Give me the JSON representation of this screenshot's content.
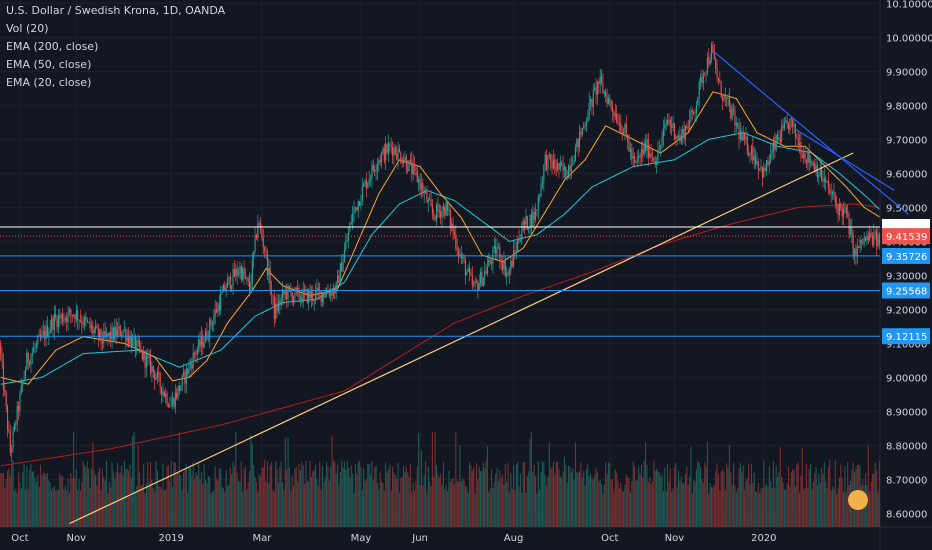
{
  "legend": {
    "title": "U.S. Dollar / Swedish Krona, 1D, OANDA",
    "lines": [
      "Vol (20)",
      "EMA (200, close)",
      "EMA (50, close)",
      "EMA (20, close)"
    ]
  },
  "colors": {
    "background": "#131722",
    "grid": "#1e2230",
    "up": "#26a69a",
    "down": "#ef5350",
    "vol_up": "#1e5b57",
    "vol_down": "#7a2f31",
    "ema200": "#b71c1c",
    "ema50": "#26c6da",
    "ema20": "#ffa726",
    "trendline_up": "#ffcc80",
    "trendline_down": "#2962ff",
    "level_line": "#2196f3"
  },
  "chart_data": {
    "type": "candlestick",
    "ylim": [
      8.56,
      10.11
    ],
    "y_ticks": [
      "10.10000",
      "10.00000",
      "9.90000",
      "9.80000",
      "9.70000",
      "9.60000",
      "9.50000",
      "9.40000",
      "9.30000",
      "9.20000",
      "9.10000",
      "9.00000",
      "8.90000",
      "8.80000",
      "8.70000",
      "8.60000"
    ],
    "x_ticks": [
      "Oct",
      "Nov",
      "2019",
      "Mar",
      "May",
      "Jun",
      "Aug",
      "Oct",
      "Nov",
      "2020"
    ],
    "price_anchors": [
      [
        0,
        9.1
      ],
      [
        8,
        8.78
      ],
      [
        20,
        9.05
      ],
      [
        40,
        9.17
      ],
      [
        55,
        9.19
      ],
      [
        75,
        9.11
      ],
      [
        90,
        9.14
      ],
      [
        105,
        9.06
      ],
      [
        112,
        9.02
      ],
      [
        118,
        8.97
      ],
      [
        125,
        8.92
      ],
      [
        131,
        8.97
      ],
      [
        137,
        9.02
      ],
      [
        142,
        9.07
      ],
      [
        150,
        9.12
      ],
      [
        165,
        9.27
      ],
      [
        175,
        9.32
      ],
      [
        182,
        9.26
      ],
      [
        188,
        9.46
      ],
      [
        193,
        9.38
      ],
      [
        200,
        9.19
      ],
      [
        208,
        9.25
      ],
      [
        218,
        9.24
      ],
      [
        228,
        9.24
      ],
      [
        245,
        9.26
      ],
      [
        257,
        9.48
      ],
      [
        265,
        9.56
      ],
      [
        275,
        9.64
      ],
      [
        285,
        9.68
      ],
      [
        295,
        9.64
      ],
      [
        305,
        9.58
      ],
      [
        315,
        9.48
      ],
      [
        325,
        9.5
      ],
      [
        335,
        9.36
      ],
      [
        345,
        9.26
      ],
      [
        352,
        9.3
      ],
      [
        362,
        9.38
      ],
      [
        370,
        9.3
      ],
      [
        380,
        9.44
      ],
      [
        390,
        9.48
      ],
      [
        397,
        9.64
      ],
      [
        405,
        9.62
      ],
      [
        412,
        9.6
      ],
      [
        420,
        9.68
      ],
      [
        428,
        9.78
      ],
      [
        436,
        9.87
      ],
      [
        445,
        9.8
      ],
      [
        455,
        9.72
      ],
      [
        462,
        9.62
      ],
      [
        470,
        9.68
      ],
      [
        478,
        9.64
      ],
      [
        486,
        9.76
      ],
      [
        495,
        9.7
      ],
      [
        505,
        9.78
      ],
      [
        512,
        9.9
      ],
      [
        518,
        9.96
      ],
      [
        524,
        9.85
      ],
      [
        532,
        9.78
      ],
      [
        540,
        9.7
      ],
      [
        548,
        9.66
      ],
      [
        556,
        9.6
      ],
      [
        566,
        9.7
      ],
      [
        575,
        9.75
      ],
      [
        585,
        9.66
      ],
      [
        594,
        9.62
      ],
      [
        602,
        9.56
      ],
      [
        610,
        9.5
      ],
      [
        616,
        9.48
      ],
      [
        622,
        9.36
      ],
      [
        628,
        9.4
      ],
      [
        634,
        9.41
      ],
      [
        640,
        9.4
      ]
    ],
    "ema20_anchors": [
      [
        0,
        9.0
      ],
      [
        20,
        8.98
      ],
      [
        40,
        9.08
      ],
      [
        60,
        9.12
      ],
      [
        90,
        9.1
      ],
      [
        112,
        9.06
      ],
      [
        125,
        8.99
      ],
      [
        137,
        9.0
      ],
      [
        150,
        9.05
      ],
      [
        165,
        9.16
      ],
      [
        182,
        9.25
      ],
      [
        193,
        9.32
      ],
      [
        205,
        9.27
      ],
      [
        225,
        9.24
      ],
      [
        245,
        9.26
      ],
      [
        260,
        9.4
      ],
      [
        275,
        9.54
      ],
      [
        290,
        9.64
      ],
      [
        305,
        9.62
      ],
      [
        320,
        9.54
      ],
      [
        335,
        9.47
      ],
      [
        350,
        9.36
      ],
      [
        365,
        9.34
      ],
      [
        380,
        9.38
      ],
      [
        395,
        9.48
      ],
      [
        410,
        9.58
      ],
      [
        425,
        9.64
      ],
      [
        440,
        9.74
      ],
      [
        460,
        9.7
      ],
      [
        480,
        9.66
      ],
      [
        500,
        9.72
      ],
      [
        518,
        9.84
      ],
      [
        535,
        9.82
      ],
      [
        550,
        9.72
      ],
      [
        570,
        9.68
      ],
      [
        585,
        9.68
      ],
      [
        600,
        9.62
      ],
      [
        615,
        9.56
      ],
      [
        628,
        9.5
      ],
      [
        640,
        9.47
      ]
    ],
    "ema50_anchors": [
      [
        0,
        8.98
      ],
      [
        30,
        9.0
      ],
      [
        60,
        9.07
      ],
      [
        100,
        9.08
      ],
      [
        130,
        9.03
      ],
      [
        160,
        9.08
      ],
      [
        185,
        9.18
      ],
      [
        205,
        9.22
      ],
      [
        230,
        9.23
      ],
      [
        250,
        9.28
      ],
      [
        270,
        9.42
      ],
      [
        290,
        9.51
      ],
      [
        310,
        9.55
      ],
      [
        330,
        9.52
      ],
      [
        350,
        9.46
      ],
      [
        370,
        9.4
      ],
      [
        390,
        9.42
      ],
      [
        410,
        9.48
      ],
      [
        430,
        9.56
      ],
      [
        460,
        9.62
      ],
      [
        490,
        9.64
      ],
      [
        515,
        9.7
      ],
      [
        540,
        9.72
      ],
      [
        565,
        9.68
      ],
      [
        590,
        9.66
      ],
      [
        610,
        9.6
      ],
      [
        630,
        9.53
      ],
      [
        640,
        9.49
      ]
    ],
    "ema200_anchors": [
      [
        0,
        8.74
      ],
      [
        80,
        8.79
      ],
      [
        160,
        8.86
      ],
      [
        250,
        8.96
      ],
      [
        330,
        9.16
      ],
      [
        380,
        9.24
      ],
      [
        430,
        9.31
      ],
      [
        480,
        9.39
      ],
      [
        530,
        9.45
      ],
      [
        580,
        9.5
      ],
      [
        620,
        9.51
      ],
      [
        640,
        9.5
      ]
    ],
    "horizontal_levels": [
      {
        "value": 9.44237,
        "label": "9.44237",
        "style": "white",
        "tag_bg": "#ffffff",
        "tag_fg": "#131722"
      },
      {
        "value": 9.41539,
        "label": "9.41539",
        "style": "current",
        "tag_bg": "#ef5350",
        "tag_fg": "#ffffff"
      },
      {
        "value": 9.35726,
        "label": "9.35726",
        "style": "blue",
        "tag_bg": "#2196f3",
        "tag_fg": "#ffffff"
      },
      {
        "value": 9.25568,
        "label": "9.25568",
        "style": "blue",
        "tag_bg": "#2196f3",
        "tag_fg": "#ffffff"
      },
      {
        "value": 9.12115,
        "label": "9.12115",
        "style": "blue",
        "tag_bg": "#2196f3",
        "tag_fg": "#ffffff"
      }
    ],
    "trendlines": [
      {
        "name": "rising support",
        "from": [
          50,
          8.57
        ],
        "to": [
          620,
          9.66
        ],
        "color": "#ffcc80"
      },
      {
        "name": "falling resistance",
        "from": [
          518,
          9.96
        ],
        "to": [
          660,
          9.48
        ],
        "color": "#2962ff"
      },
      {
        "name": "falling resistance 2",
        "from": [
          578,
          9.73
        ],
        "to": [
          650,
          9.55
        ],
        "color": "#2962ff"
      }
    ]
  }
}
